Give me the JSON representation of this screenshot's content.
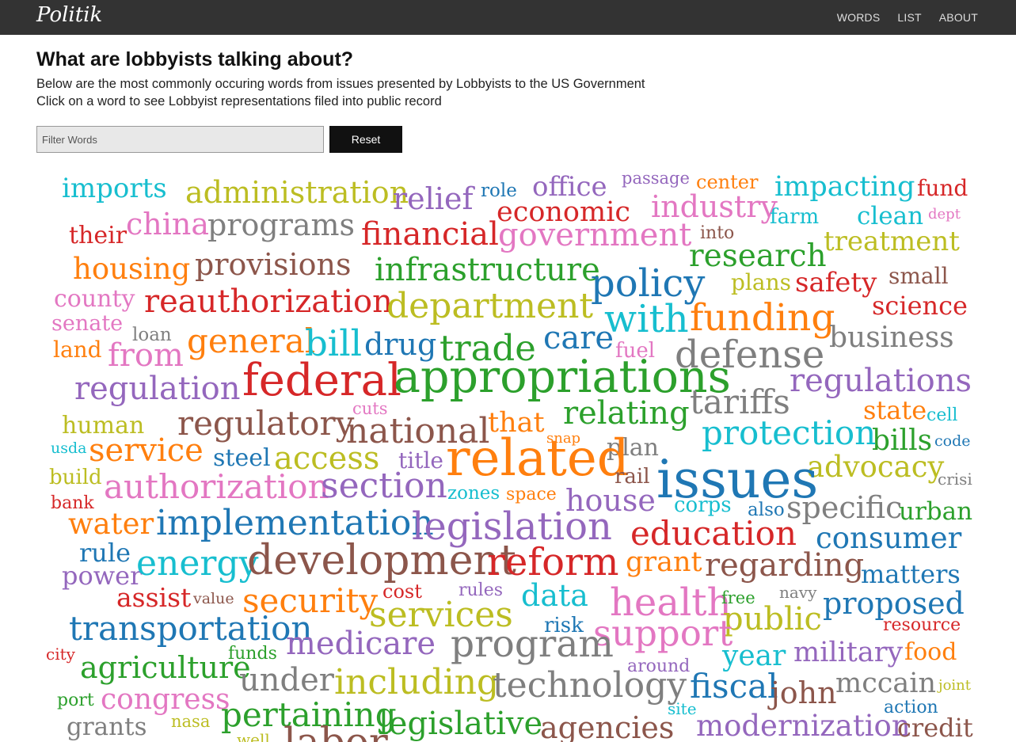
{
  "app": {
    "brand": "Politik",
    "nav": [
      "WORDS",
      "LIST",
      "ABOUT"
    ]
  },
  "header": {
    "title": "What are lobbyists talking about?",
    "subtitle_1": "Below are the most commonly occuring words from issues presented by Lobbyists to the US Government",
    "subtitle_2": "Click on a word to see Lobbyist representations filed into public record"
  },
  "filter": {
    "placeholder": "Filter Words",
    "value": "",
    "reset_label": "Reset"
  },
  "colors": {
    "teal": "#17becf",
    "olive": "#bcbd22",
    "purple": "#9467bd",
    "blue": "#1f77b4",
    "red": "#d62728",
    "pink": "#e377c2",
    "orange": "#ff7f0e",
    "gray": "#7f7f7f",
    "brown": "#8c564b",
    "green": "#2ca02c"
  },
  "words": [
    {
      "text": "imports",
      "color": "teal"
    },
    {
      "text": "administration",
      "color": "olive"
    },
    {
      "text": "relief",
      "color": "purple"
    },
    {
      "text": "role",
      "color": "blue"
    },
    {
      "text": "office",
      "color": "purple"
    },
    {
      "text": "passage",
      "color": "purple"
    },
    {
      "text": "center",
      "color": "orange"
    },
    {
      "text": "impacting",
      "color": "teal"
    },
    {
      "text": "fund",
      "color": "red"
    },
    {
      "text": "china",
      "color": "pink"
    },
    {
      "text": "programs",
      "color": "gray"
    },
    {
      "text": "economic",
      "color": "red"
    },
    {
      "text": "industry",
      "color": "pink"
    },
    {
      "text": "farm",
      "color": "teal"
    },
    {
      "text": "clean",
      "color": "teal"
    },
    {
      "text": "dept",
      "color": "pink"
    },
    {
      "text": "their",
      "color": "red"
    },
    {
      "text": "financial",
      "color": "red"
    },
    {
      "text": "government",
      "color": "pink"
    },
    {
      "text": "into",
      "color": "brown"
    },
    {
      "text": "treatment",
      "color": "olive"
    },
    {
      "text": "housing",
      "color": "orange"
    },
    {
      "text": "provisions",
      "color": "brown"
    },
    {
      "text": "infrastructure",
      "color": "green"
    },
    {
      "text": "research",
      "color": "green"
    },
    {
      "text": "policy",
      "color": "blue"
    },
    {
      "text": "plans",
      "color": "olive"
    },
    {
      "text": "safety",
      "color": "red"
    },
    {
      "text": "small",
      "color": "brown"
    },
    {
      "text": "county",
      "color": "pink"
    },
    {
      "text": "reauthorization",
      "color": "red"
    },
    {
      "text": "department",
      "color": "olive"
    },
    {
      "text": "with",
      "color": "teal"
    },
    {
      "text": "funding",
      "color": "orange"
    },
    {
      "text": "science",
      "color": "red"
    },
    {
      "text": "senate",
      "color": "pink"
    },
    {
      "text": "loan",
      "color": "gray"
    },
    {
      "text": "general",
      "color": "orange"
    },
    {
      "text": "bill",
      "color": "teal"
    },
    {
      "text": "drug",
      "color": "blue"
    },
    {
      "text": "trade",
      "color": "green"
    },
    {
      "text": "care",
      "color": "blue"
    },
    {
      "text": "fuel",
      "color": "pink"
    },
    {
      "text": "defense",
      "color": "gray"
    },
    {
      "text": "business",
      "color": "gray"
    },
    {
      "text": "land",
      "color": "orange"
    },
    {
      "text": "from",
      "color": "pink"
    },
    {
      "text": "federal",
      "color": "red"
    },
    {
      "text": "appropriations",
      "color": "green"
    },
    {
      "text": "regulations",
      "color": "purple"
    },
    {
      "text": "regulation",
      "color": "purple"
    },
    {
      "text": "cuts",
      "color": "pink"
    },
    {
      "text": "tariffs",
      "color": "gray"
    },
    {
      "text": "human",
      "color": "olive"
    },
    {
      "text": "regulatory",
      "color": "brown"
    },
    {
      "text": "that",
      "color": "orange"
    },
    {
      "text": "relating",
      "color": "green"
    },
    {
      "text": "state",
      "color": "orange"
    },
    {
      "text": "cell",
      "color": "teal"
    },
    {
      "text": "national",
      "color": "brown"
    },
    {
      "text": "protection",
      "color": "teal"
    },
    {
      "text": "bills",
      "color": "green"
    },
    {
      "text": "usda",
      "color": "teal"
    },
    {
      "text": "service",
      "color": "orange"
    },
    {
      "text": "steel",
      "color": "blue"
    },
    {
      "text": "access",
      "color": "olive"
    },
    {
      "text": "snap",
      "color": "orange"
    },
    {
      "text": "plan",
      "color": "gray"
    },
    {
      "text": "code",
      "color": "blue"
    },
    {
      "text": "related",
      "color": "orange"
    },
    {
      "text": "title",
      "color": "purple"
    },
    {
      "text": "advocacy",
      "color": "olive"
    },
    {
      "text": "build",
      "color": "olive"
    },
    {
      "text": "authorization",
      "color": "pink"
    },
    {
      "text": "section",
      "color": "purple"
    },
    {
      "text": "rail",
      "color": "brown"
    },
    {
      "text": "issues",
      "color": "blue"
    },
    {
      "text": "crisi",
      "color": "gray"
    },
    {
      "text": "bank",
      "color": "red"
    },
    {
      "text": "zones",
      "color": "teal"
    },
    {
      "text": "space",
      "color": "orange"
    },
    {
      "text": "house",
      "color": "purple"
    },
    {
      "text": "corps",
      "color": "teal"
    },
    {
      "text": "also",
      "color": "blue"
    },
    {
      "text": "specific",
      "color": "gray"
    },
    {
      "text": "urban",
      "color": "green"
    },
    {
      "text": "water",
      "color": "orange"
    },
    {
      "text": "implementation",
      "color": "blue"
    },
    {
      "text": "legislation",
      "color": "purple"
    },
    {
      "text": "education",
      "color": "red"
    },
    {
      "text": "consumer",
      "color": "blue"
    },
    {
      "text": "rule",
      "color": "blue"
    },
    {
      "text": "power",
      "color": "purple"
    },
    {
      "text": "energy",
      "color": "teal"
    },
    {
      "text": "development",
      "color": "brown"
    },
    {
      "text": "reform",
      "color": "red"
    },
    {
      "text": "grant",
      "color": "orange"
    },
    {
      "text": "regarding",
      "color": "brown"
    },
    {
      "text": "matters",
      "color": "blue"
    },
    {
      "text": "assist",
      "color": "red"
    },
    {
      "text": "value",
      "color": "brown"
    },
    {
      "text": "cost",
      "color": "red"
    },
    {
      "text": "rules",
      "color": "purple"
    },
    {
      "text": "security",
      "color": "orange"
    },
    {
      "text": "data",
      "color": "teal"
    },
    {
      "text": "health",
      "color": "pink"
    },
    {
      "text": "free",
      "color": "green"
    },
    {
      "text": "navy",
      "color": "gray"
    },
    {
      "text": "proposed",
      "color": "blue"
    },
    {
      "text": "services",
      "color": "olive"
    },
    {
      "text": "public",
      "color": "olive"
    },
    {
      "text": "transportation",
      "color": "blue"
    },
    {
      "text": "risk",
      "color": "blue"
    },
    {
      "text": "resource",
      "color": "red"
    },
    {
      "text": "support",
      "color": "pink"
    },
    {
      "text": "medicare",
      "color": "purple"
    },
    {
      "text": "program",
      "color": "gray"
    },
    {
      "text": "city",
      "color": "red"
    },
    {
      "text": "funds",
      "color": "green"
    },
    {
      "text": "military",
      "color": "purple"
    },
    {
      "text": "food",
      "color": "orange"
    },
    {
      "text": "year",
      "color": "teal"
    },
    {
      "text": "agriculture",
      "color": "green"
    },
    {
      "text": "around",
      "color": "purple"
    },
    {
      "text": "under",
      "color": "gray"
    },
    {
      "text": "including",
      "color": "olive"
    },
    {
      "text": "technology",
      "color": "gray"
    },
    {
      "text": "fiscal",
      "color": "blue"
    },
    {
      "text": "mccain",
      "color": "gray"
    },
    {
      "text": "joint",
      "color": "olive"
    },
    {
      "text": "john",
      "color": "brown"
    },
    {
      "text": "port",
      "color": "green"
    },
    {
      "text": "congress",
      "color": "pink"
    },
    {
      "text": "site",
      "color": "teal"
    },
    {
      "text": "action",
      "color": "blue"
    },
    {
      "text": "grants",
      "color": "gray"
    },
    {
      "text": "nasa",
      "color": "olive"
    },
    {
      "text": "pertaining",
      "color": "green"
    },
    {
      "text": "legislative",
      "color": "green"
    },
    {
      "text": "agencies",
      "color": "brown"
    },
    {
      "text": "modernization",
      "color": "purple"
    },
    {
      "text": "credit",
      "color": "brown"
    },
    {
      "text": "labor",
      "color": "brown"
    },
    {
      "text": "well",
      "color": "olive"
    }
  ]
}
